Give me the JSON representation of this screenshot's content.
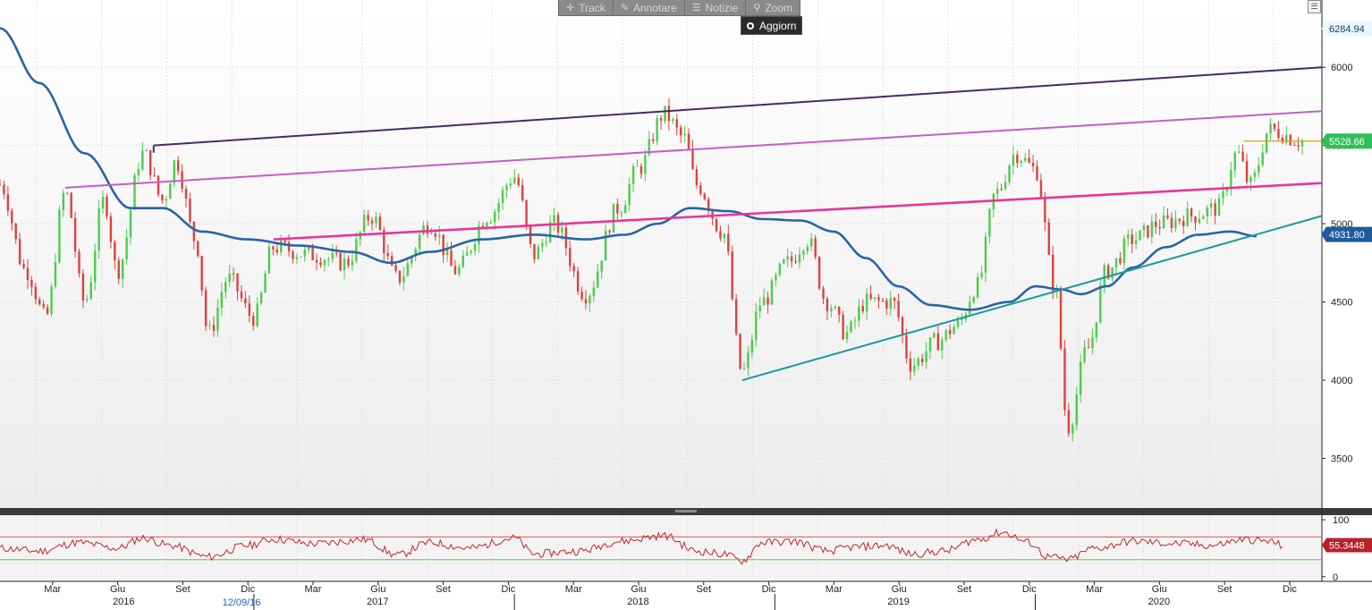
{
  "toolbar": {
    "track_label": "Track",
    "annotate_label": "Annotare",
    "news_label": "Notizie",
    "zoom_label": "Zoom",
    "refresh_label": "Aggiorn"
  },
  "colors": {
    "up_candle": "#4ccc4c",
    "down_candle": "#e0413c",
    "moving_average": "#2a64a6",
    "top_channel": "#4a2a6a",
    "mid_channel": "#c060c8",
    "pink_trend": "#e8359a",
    "support_trend": "#1f9a9a",
    "rsi_line": "#c0282e",
    "rsi_overbought": "#e05050",
    "rsi_oversold": "#55cc55"
  },
  "chart_data": [
    {
      "type": "candlestick",
      "x_ticks": [
        "Mar",
        "Giu",
        "Set",
        "Dic",
        "Mar",
        "Giu",
        "Set",
        "Dic",
        "Mar",
        "Giu",
        "Set",
        "Dic",
        "Mar",
        "Giu",
        "Set",
        "Dic",
        "Mar",
        "Giu",
        "Set",
        "Dic"
      ],
      "years": [
        "2016",
        "2017",
        "2018",
        "2019",
        "2020"
      ],
      "crosshair_date": "12/09/16",
      "y_ticks": [
        "6000",
        "5500",
        "5000",
        "4500",
        "4000",
        "3500"
      ],
      "ylim": [
        3200,
        6350
      ],
      "price_labels": {
        "high": "6284.94",
        "last": "5528.66",
        "moving_average": "4931.80"
      },
      "price_anchors": [
        {
          "t": 0.0,
          "v": 5250
        },
        {
          "t": 0.02,
          "v": 4700
        },
        {
          "t": 0.035,
          "v": 4400
        },
        {
          "t": 0.05,
          "v": 5200
        },
        {
          "t": 0.065,
          "v": 4500
        },
        {
          "t": 0.08,
          "v": 5150
        },
        {
          "t": 0.09,
          "v": 4700
        },
        {
          "t": 0.11,
          "v": 5450
        },
        {
          "t": 0.125,
          "v": 5150
        },
        {
          "t": 0.135,
          "v": 5400
        },
        {
          "t": 0.15,
          "v": 4900
        },
        {
          "t": 0.16,
          "v": 4300
        },
        {
          "t": 0.175,
          "v": 4650
        },
        {
          "t": 0.195,
          "v": 4400
        },
        {
          "t": 0.21,
          "v": 4850
        },
        {
          "t": 0.24,
          "v": 4800
        },
        {
          "t": 0.265,
          "v": 4750
        },
        {
          "t": 0.285,
          "v": 5050
        },
        {
          "t": 0.305,
          "v": 4650
        },
        {
          "t": 0.33,
          "v": 5000
        },
        {
          "t": 0.35,
          "v": 4700
        },
        {
          "t": 0.375,
          "v": 5050
        },
        {
          "t": 0.395,
          "v": 5300
        },
        {
          "t": 0.41,
          "v": 4800
        },
        {
          "t": 0.425,
          "v": 5000
        },
        {
          "t": 0.45,
          "v": 4550
        },
        {
          "t": 0.475,
          "v": 5100
        },
        {
          "t": 0.49,
          "v": 5350
        },
        {
          "t": 0.51,
          "v": 5700
        },
        {
          "t": 0.525,
          "v": 5550
        },
        {
          "t": 0.535,
          "v": 5250
        },
        {
          "t": 0.555,
          "v": 4950
        },
        {
          "t": 0.57,
          "v": 4050
        },
        {
          "t": 0.585,
          "v": 4500
        },
        {
          "t": 0.605,
          "v": 4750
        },
        {
          "t": 0.62,
          "v": 4900
        },
        {
          "t": 0.635,
          "v": 4500
        },
        {
          "t": 0.65,
          "v": 4300
        },
        {
          "t": 0.665,
          "v": 4500
        },
        {
          "t": 0.685,
          "v": 4500
        },
        {
          "t": 0.7,
          "v": 4100
        },
        {
          "t": 0.72,
          "v": 4250
        },
        {
          "t": 0.735,
          "v": 4350
        },
        {
          "t": 0.75,
          "v": 4600
        },
        {
          "t": 0.765,
          "v": 5200
        },
        {
          "t": 0.78,
          "v": 5450
        },
        {
          "t": 0.795,
          "v": 5350
        },
        {
          "t": 0.81,
          "v": 4600
        },
        {
          "t": 0.82,
          "v": 3700
        },
        {
          "t": 0.835,
          "v": 4200
        },
        {
          "t": 0.85,
          "v": 4700
        },
        {
          "t": 0.87,
          "v": 4900
        },
        {
          "t": 0.89,
          "v": 5000
        },
        {
          "t": 0.915,
          "v": 5050
        },
        {
          "t": 0.935,
          "v": 5100
        },
        {
          "t": 0.95,
          "v": 5450
        },
        {
          "t": 0.96,
          "v": 5250
        },
        {
          "t": 0.975,
          "v": 5600
        },
        {
          "t": 1.0,
          "v": 5530
        }
      ],
      "ma_anchors": [
        {
          "t": 0.0,
          "v": 6250
        },
        {
          "t": 0.03,
          "v": 5900
        },
        {
          "t": 0.065,
          "v": 5450
        },
        {
          "t": 0.1,
          "v": 5100
        },
        {
          "t": 0.125,
          "v": 5100
        },
        {
          "t": 0.155,
          "v": 4950
        },
        {
          "t": 0.19,
          "v": 4900
        },
        {
          "t": 0.23,
          "v": 4860
        },
        {
          "t": 0.27,
          "v": 4820
        },
        {
          "t": 0.3,
          "v": 4750
        },
        {
          "t": 0.33,
          "v": 4820
        },
        {
          "t": 0.37,
          "v": 4900
        },
        {
          "t": 0.41,
          "v": 4930
        },
        {
          "t": 0.45,
          "v": 4900
        },
        {
          "t": 0.48,
          "v": 4930
        },
        {
          "t": 0.505,
          "v": 5000
        },
        {
          "t": 0.53,
          "v": 5100
        },
        {
          "t": 0.56,
          "v": 5080
        },
        {
          "t": 0.585,
          "v": 5030
        },
        {
          "t": 0.615,
          "v": 5020
        },
        {
          "t": 0.64,
          "v": 4950
        },
        {
          "t": 0.665,
          "v": 4780
        },
        {
          "t": 0.69,
          "v": 4600
        },
        {
          "t": 0.715,
          "v": 4480
        },
        {
          "t": 0.745,
          "v": 4450
        },
        {
          "t": 0.775,
          "v": 4500
        },
        {
          "t": 0.795,
          "v": 4600
        },
        {
          "t": 0.815,
          "v": 4580
        },
        {
          "t": 0.83,
          "v": 4550
        },
        {
          "t": 0.85,
          "v": 4600
        },
        {
          "t": 0.87,
          "v": 4720
        },
        {
          "t": 0.895,
          "v": 4850
        },
        {
          "t": 0.92,
          "v": 4930
        },
        {
          "t": 0.945,
          "v": 4950
        },
        {
          "t": 0.965,
          "v": 4920
        }
      ],
      "trendlines": [
        {
          "name": "top-channel",
          "color_key": "top_channel",
          "t1": 0.118,
          "v1": 5500,
          "t2": 1.0,
          "v2": 6000
        },
        {
          "name": "mid-channel",
          "color_key": "mid_channel",
          "t1": 0.05,
          "v1": 5230,
          "t2": 1.0,
          "v2": 5720
        },
        {
          "name": "pink-trend",
          "color_key": "pink_trend",
          "t1": 0.21,
          "v1": 4900,
          "t2": 1.0,
          "v2": 5260
        },
        {
          "name": "support-trend",
          "color_key": "support_trend",
          "t1": 0.57,
          "v1": 4000,
          "t2": 1.0,
          "v2": 5050
        }
      ],
      "last_level_line": {
        "t1": 0.955,
        "v": 5528
      }
    },
    {
      "type": "line",
      "name": "RSI",
      "y_ticks": [
        "100",
        "0"
      ],
      "ylim": [
        -5,
        108
      ],
      "overbought": 70,
      "oversold": 30,
      "last_value": "55.3448",
      "rsi_anchors": [
        {
          "t": 0.0,
          "v": 50
        },
        {
          "t": 0.03,
          "v": 45
        },
        {
          "t": 0.06,
          "v": 60
        },
        {
          "t": 0.09,
          "v": 50
        },
        {
          "t": 0.11,
          "v": 68
        },
        {
          "t": 0.13,
          "v": 55
        },
        {
          "t": 0.16,
          "v": 35
        },
        {
          "t": 0.19,
          "v": 55
        },
        {
          "t": 0.21,
          "v": 66
        },
        {
          "t": 0.24,
          "v": 58
        },
        {
          "t": 0.28,
          "v": 65
        },
        {
          "t": 0.305,
          "v": 38
        },
        {
          "t": 0.33,
          "v": 60
        },
        {
          "t": 0.36,
          "v": 50
        },
        {
          "t": 0.395,
          "v": 68
        },
        {
          "t": 0.41,
          "v": 40
        },
        {
          "t": 0.445,
          "v": 45
        },
        {
          "t": 0.475,
          "v": 62
        },
        {
          "t": 0.51,
          "v": 72
        },
        {
          "t": 0.535,
          "v": 45
        },
        {
          "t": 0.555,
          "v": 40
        },
        {
          "t": 0.57,
          "v": 28
        },
        {
          "t": 0.585,
          "v": 60
        },
        {
          "t": 0.61,
          "v": 62
        },
        {
          "t": 0.635,
          "v": 45
        },
        {
          "t": 0.655,
          "v": 52
        },
        {
          "t": 0.68,
          "v": 55
        },
        {
          "t": 0.7,
          "v": 40
        },
        {
          "t": 0.725,
          "v": 45
        },
        {
          "t": 0.75,
          "v": 65
        },
        {
          "t": 0.77,
          "v": 78
        },
        {
          "t": 0.79,
          "v": 60
        },
        {
          "t": 0.805,
          "v": 35
        },
        {
          "t": 0.82,
          "v": 30
        },
        {
          "t": 0.84,
          "v": 50
        },
        {
          "t": 0.87,
          "v": 62
        },
        {
          "t": 0.905,
          "v": 58
        },
        {
          "t": 0.93,
          "v": 55
        },
        {
          "t": 0.955,
          "v": 65
        },
        {
          "t": 0.975,
          "v": 62
        },
        {
          "t": 0.985,
          "v": 55
        }
      ]
    }
  ]
}
